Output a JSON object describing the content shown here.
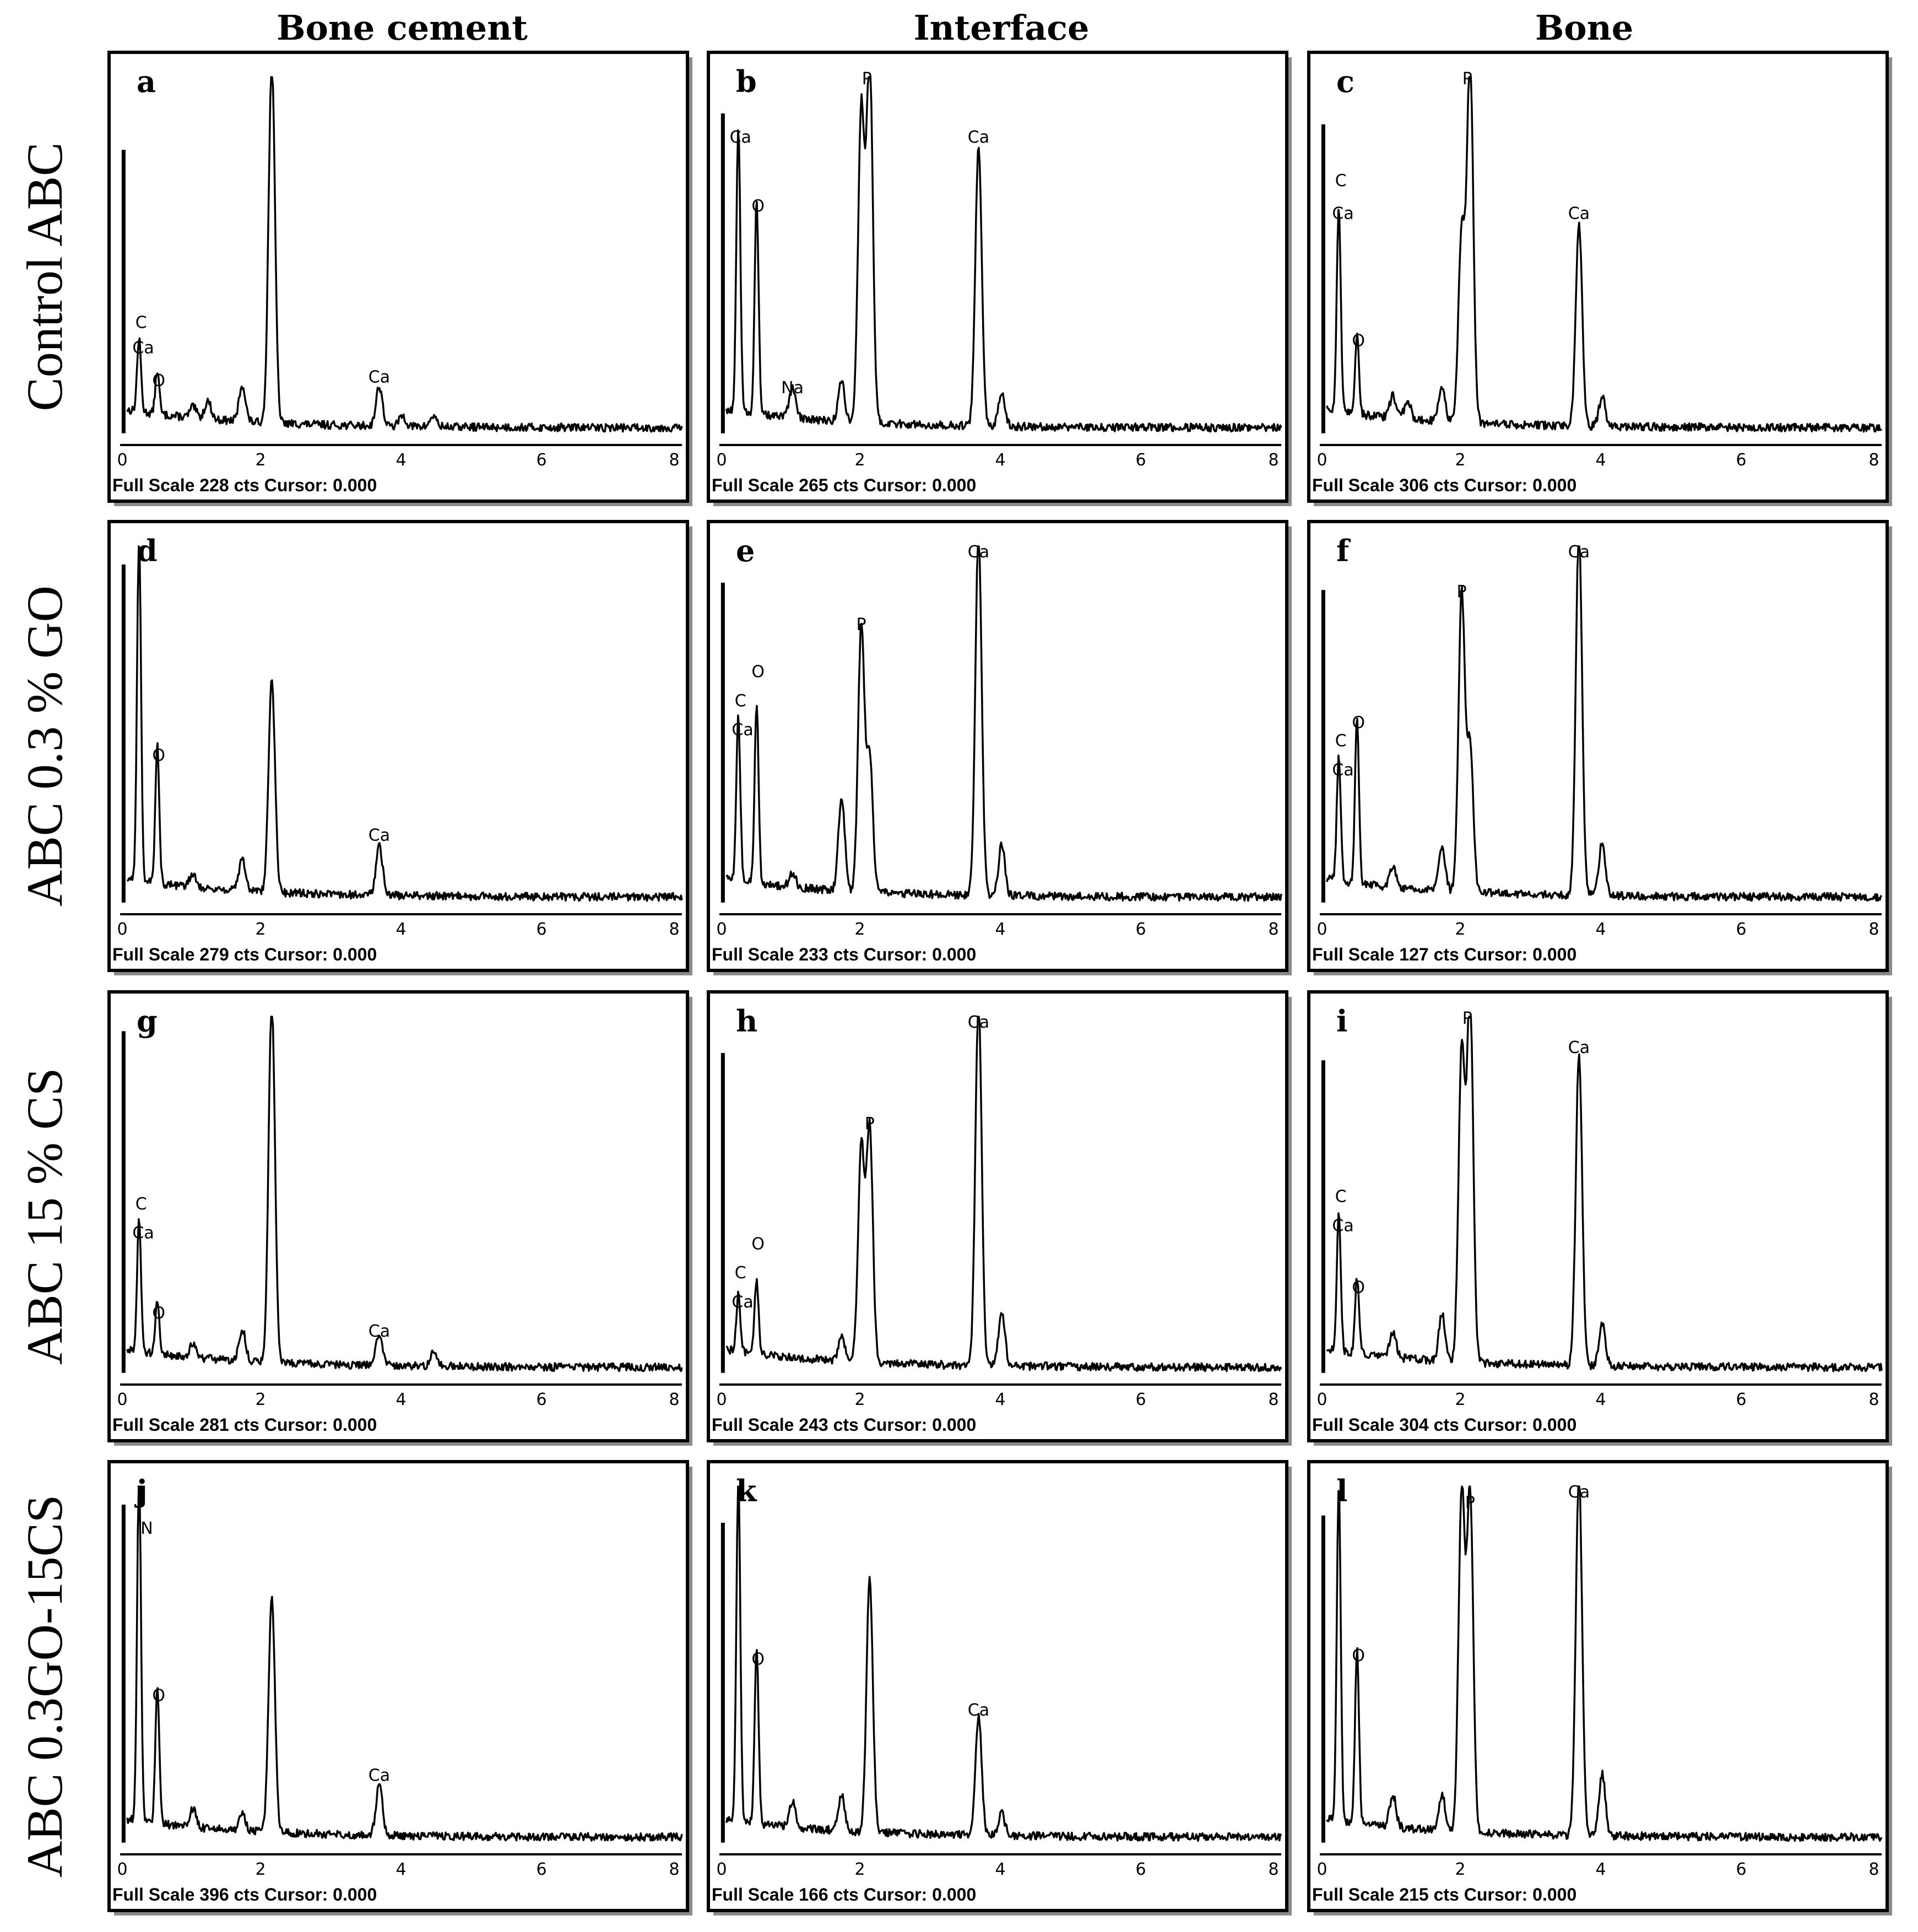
{
  "columns": [
    "Bone cement",
    "Interface",
    "Bone"
  ],
  "rows": [
    "Control ABC",
    "ABC 0.3 % GO",
    "ABC 15 % CS",
    "ABC 0.3GO-15CS"
  ],
  "x_axis": {
    "range": [
      0,
      8
    ],
    "ticks": [
      "0",
      "2",
      "4",
      "6",
      "8"
    ]
  },
  "footer_template": {
    "prefix": "Full Scale",
    "units": "cts",
    "cursor": "Cursor: 0.000"
  },
  "chart_data": [
    {
      "type": "line",
      "panel": "a",
      "column": "Bone cement",
      "row": "Control ABC",
      "full_scale_cts": 228,
      "footer": "Full Scale 228 cts Cursor: 0.000",
      "peaks": [
        {
          "x": 0.05,
          "y": 0.8
        },
        {
          "x": 0.27,
          "y": 0.2
        },
        {
          "x": 0.53,
          "y": 0.12
        },
        {
          "x": 1.04,
          "y": 0.03
        },
        {
          "x": 1.25,
          "y": 0.05
        },
        {
          "x": 1.74,
          "y": 0.1
        },
        {
          "x": 2.16,
          "y": 1.0
        },
        {
          "x": 3.69,
          "y": 0.11
        },
        {
          "x": 4.02,
          "y": 0.03
        },
        {
          "x": 4.46,
          "y": 0.03
        }
      ],
      "labels": [
        {
          "text": "C",
          "x": 0.3,
          "y": 0.31
        },
        {
          "text": "Ca",
          "x": 0.33,
          "y": 0.24
        },
        {
          "text": "O",
          "x": 0.55,
          "y": 0.15
        },
        {
          "text": "Ca",
          "x": 3.69,
          "y": 0.16
        }
      ]
    },
    {
      "type": "line",
      "panel": "b",
      "column": "Interface",
      "row": "Control ABC",
      "full_scale_cts": 265,
      "footer": "Full Scale 265 cts Cursor: 0.000",
      "peaks": [
        {
          "x": 0.05,
          "y": 0.9
        },
        {
          "x": 0.27,
          "y": 0.79
        },
        {
          "x": 0.53,
          "y": 0.59
        },
        {
          "x": 1.04,
          "y": 0.08
        },
        {
          "x": 1.74,
          "y": 0.11
        },
        {
          "x": 2.02,
          "y": 0.86
        },
        {
          "x": 2.14,
          "y": 1.0
        },
        {
          "x": 3.69,
          "y": 0.77
        },
        {
          "x": 4.02,
          "y": 0.09
        }
      ],
      "labels": [
        {
          "text": "Ca",
          "x": 0.3,
          "y": 0.82
        },
        {
          "text": "O",
          "x": 0.55,
          "y": 0.63
        },
        {
          "text": "Na",
          "x": 1.04,
          "y": 0.13
        },
        {
          "text": "P",
          "x": 2.1,
          "y": 0.98
        },
        {
          "text": "Ca",
          "x": 3.69,
          "y": 0.82
        }
      ]
    },
    {
      "type": "line",
      "panel": "c",
      "column": "Bone",
      "row": "Control ABC",
      "full_scale_cts": 306,
      "footer": "Full Scale 306 cts Cursor: 0.000",
      "peaks": [
        {
          "x": 0.05,
          "y": 0.87
        },
        {
          "x": 0.27,
          "y": 0.57
        },
        {
          "x": 0.53,
          "y": 0.22
        },
        {
          "x": 1.04,
          "y": 0.06
        },
        {
          "x": 1.25,
          "y": 0.05
        },
        {
          "x": 1.74,
          "y": 0.1
        },
        {
          "x": 2.02,
          "y": 0.53
        },
        {
          "x": 2.14,
          "y": 1.0
        },
        {
          "x": 3.69,
          "y": 0.56
        },
        {
          "x": 4.02,
          "y": 0.08
        }
      ],
      "labels": [
        {
          "text": "C",
          "x": 0.3,
          "y": 0.7
        },
        {
          "text": "Ca",
          "x": 0.33,
          "y": 0.61
        },
        {
          "text": "O",
          "x": 0.55,
          "y": 0.26
        },
        {
          "text": "P",
          "x": 2.1,
          "y": 0.98
        },
        {
          "text": "Ca",
          "x": 3.69,
          "y": 0.61
        }
      ]
    },
    {
      "type": "line",
      "panel": "d",
      "column": "Bone cement",
      "row": "ABC 0.3 % GO",
      "full_scale_cts": 279,
      "footer": "Full Scale 279 cts Cursor: 0.000",
      "peaks": [
        {
          "x": 0.05,
          "y": 0.95
        },
        {
          "x": 0.27,
          "y": 0.95
        },
        {
          "x": 0.53,
          "y": 0.38
        },
        {
          "x": 1.04,
          "y": 0.04
        },
        {
          "x": 1.74,
          "y": 0.09
        },
        {
          "x": 2.16,
          "y": 0.59
        },
        {
          "x": 3.69,
          "y": 0.14
        }
      ],
      "labels": [
        {
          "text": "O",
          "x": 0.55,
          "y": 0.41
        },
        {
          "text": "Ca",
          "x": 3.69,
          "y": 0.19
        }
      ]
    },
    {
      "type": "line",
      "panel": "e",
      "column": "Interface",
      "row": "ABC 0.3 % GO",
      "full_scale_cts": 233,
      "footer": "Full Scale 233 cts Cursor: 0.000",
      "peaks": [
        {
          "x": 0.05,
          "y": 0.9
        },
        {
          "x": 0.27,
          "y": 0.45
        },
        {
          "x": 0.53,
          "y": 0.5
        },
        {
          "x": 1.04,
          "y": 0.04
        },
        {
          "x": 1.74,
          "y": 0.26
        },
        {
          "x": 2.02,
          "y": 0.73
        },
        {
          "x": 2.14,
          "y": 0.37
        },
        {
          "x": 3.69,
          "y": 1.0
        },
        {
          "x": 4.02,
          "y": 0.14
        }
      ],
      "labels": [
        {
          "text": "C",
          "x": 0.3,
          "y": 0.56
        },
        {
          "text": "Ca",
          "x": 0.33,
          "y": 0.48
        },
        {
          "text": "O",
          "x": 0.55,
          "y": 0.64
        },
        {
          "text": "P",
          "x": 2.02,
          "y": 0.77
        },
        {
          "text": "Ca",
          "x": 3.69,
          "y": 0.97
        }
      ]
    },
    {
      "type": "line",
      "panel": "f",
      "column": "Bone",
      "row": "ABC 0.3 % GO",
      "full_scale_cts": 127,
      "footer": "Full Scale 127 cts Cursor: 0.000",
      "peaks": [
        {
          "x": 0.05,
          "y": 0.88
        },
        {
          "x": 0.27,
          "y": 0.34
        },
        {
          "x": 0.53,
          "y": 0.46
        },
        {
          "x": 1.04,
          "y": 0.06
        },
        {
          "x": 1.74,
          "y": 0.12
        },
        {
          "x": 2.02,
          "y": 0.82
        },
        {
          "x": 2.14,
          "y": 0.4
        },
        {
          "x": 3.69,
          "y": 1.0
        },
        {
          "x": 4.02,
          "y": 0.15
        }
      ],
      "labels": [
        {
          "text": "C",
          "x": 0.3,
          "y": 0.45
        },
        {
          "text": "Ca",
          "x": 0.33,
          "y": 0.37
        },
        {
          "text": "O",
          "x": 0.55,
          "y": 0.5
        },
        {
          "text": "P",
          "x": 2.02,
          "y": 0.86
        },
        {
          "text": "Ca",
          "x": 3.69,
          "y": 0.97
        }
      ]
    },
    {
      "type": "line",
      "panel": "g",
      "column": "Bone cement",
      "row": "ABC 15 % CS",
      "full_scale_cts": 281,
      "footer": "Full Scale 281 cts Cursor: 0.000",
      "peaks": [
        {
          "x": 0.05,
          "y": 0.96
        },
        {
          "x": 0.27,
          "y": 0.36
        },
        {
          "x": 0.53,
          "y": 0.14
        },
        {
          "x": 1.04,
          "y": 0.04
        },
        {
          "x": 1.74,
          "y": 0.09
        },
        {
          "x": 2.16,
          "y": 1.0
        },
        {
          "x": 3.69,
          "y": 0.09
        },
        {
          "x": 4.46,
          "y": 0.04
        }
      ],
      "labels": [
        {
          "text": "C",
          "x": 0.3,
          "y": 0.47
        },
        {
          "text": "Ca",
          "x": 0.33,
          "y": 0.39
        },
        {
          "text": "O",
          "x": 0.55,
          "y": 0.17
        },
        {
          "text": "Ca",
          "x": 3.69,
          "y": 0.12
        }
      ]
    },
    {
      "type": "line",
      "panel": "h",
      "column": "Interface",
      "row": "ABC 15 % CS",
      "full_scale_cts": 243,
      "footer": "Full Scale 243 cts Cursor: 0.000",
      "peaks": [
        {
          "x": 0.05,
          "y": 0.9
        },
        {
          "x": 0.27,
          "y": 0.16
        },
        {
          "x": 0.53,
          "y": 0.2
        },
        {
          "x": 1.74,
          "y": 0.07
        },
        {
          "x": 2.02,
          "y": 0.59
        },
        {
          "x": 2.14,
          "y": 0.65
        },
        {
          "x": 3.69,
          "y": 1.0
        },
        {
          "x": 4.02,
          "y": 0.15
        }
      ],
      "labels": [
        {
          "text": "C",
          "x": 0.3,
          "y": 0.28
        },
        {
          "text": "Ca",
          "x": 0.33,
          "y": 0.2
        },
        {
          "text": "O",
          "x": 0.55,
          "y": 0.36
        },
        {
          "text": "P",
          "x": 2.14,
          "y": 0.69
        },
        {
          "text": "Ca",
          "x": 3.69,
          "y": 0.97
        }
      ]
    },
    {
      "type": "line",
      "panel": "i",
      "column": "Bone",
      "row": "ABC 15 % CS",
      "full_scale_cts": 304,
      "footer": "Full Scale 304 cts Cursor: 0.000",
      "peaks": [
        {
          "x": 0.05,
          "y": 0.88
        },
        {
          "x": 0.27,
          "y": 0.38
        },
        {
          "x": 0.53,
          "y": 0.21
        },
        {
          "x": 1.04,
          "y": 0.07
        },
        {
          "x": 1.74,
          "y": 0.13
        },
        {
          "x": 2.02,
          "y": 0.86
        },
        {
          "x": 2.14,
          "y": 1.0
        },
        {
          "x": 3.69,
          "y": 0.86
        },
        {
          "x": 4.02,
          "y": 0.12
        }
      ],
      "labels": [
        {
          "text": "C",
          "x": 0.3,
          "y": 0.49
        },
        {
          "text": "Ca",
          "x": 0.33,
          "y": 0.41
        },
        {
          "text": "O",
          "x": 0.55,
          "y": 0.24
        },
        {
          "text": "P",
          "x": 2.1,
          "y": 0.98
        },
        {
          "text": "Ca",
          "x": 3.69,
          "y": 0.9
        }
      ]
    },
    {
      "type": "line",
      "panel": "j",
      "column": "Bone cement",
      "row": "ABC 0.3GO-15CS",
      "full_scale_cts": 396,
      "footer": "Full Scale 396 cts Cursor: 0.000",
      "peaks": [
        {
          "x": 0.05,
          "y": 0.95
        },
        {
          "x": 0.27,
          "y": 0.95
        },
        {
          "x": 0.53,
          "y": 0.38
        },
        {
          "x": 1.04,
          "y": 0.05
        },
        {
          "x": 1.74,
          "y": 0.05
        },
        {
          "x": 2.16,
          "y": 0.65
        },
        {
          "x": 3.69,
          "y": 0.14
        }
      ],
      "labels": [
        {
          "text": "N",
          "x": 0.38,
          "y": 0.87
        },
        {
          "text": "O",
          "x": 0.55,
          "y": 0.41
        },
        {
          "text": "Ca",
          "x": 3.69,
          "y": 0.19
        }
      ]
    },
    {
      "type": "line",
      "panel": "k",
      "column": "Interface",
      "row": "ABC 0.3GO-15CS",
      "full_scale_cts": 166,
      "footer": "Full Scale 166 cts Cursor: 0.000",
      "peaks": [
        {
          "x": 0.05,
          "y": 0.9
        },
        {
          "x": 0.27,
          "y": 0.95
        },
        {
          "x": 0.53,
          "y": 0.48
        },
        {
          "x": 1.04,
          "y": 0.07
        },
        {
          "x": 1.74,
          "y": 0.1
        },
        {
          "x": 2.14,
          "y": 0.7
        },
        {
          "x": 3.69,
          "y": 0.33
        },
        {
          "x": 4.02,
          "y": 0.06
        }
      ],
      "labels": [
        {
          "text": "O",
          "x": 0.55,
          "y": 0.51
        },
        {
          "text": "Ca",
          "x": 3.69,
          "y": 0.37
        }
      ]
    },
    {
      "type": "line",
      "panel": "l",
      "column": "Bone",
      "row": "ABC 0.3GO-15CS",
      "full_scale_cts": 215,
      "footer": "Full Scale 215 cts Cursor: 0.000",
      "peaks": [
        {
          "x": 0.05,
          "y": 0.92
        },
        {
          "x": 0.27,
          "y": 0.92
        },
        {
          "x": 0.53,
          "y": 0.48
        },
        {
          "x": 1.04,
          "y": 0.09
        },
        {
          "x": 1.74,
          "y": 0.1
        },
        {
          "x": 2.02,
          "y": 0.93
        },
        {
          "x": 2.14,
          "y": 0.93
        },
        {
          "x": 3.69,
          "y": 1.0
        },
        {
          "x": 4.02,
          "y": 0.17
        }
      ],
      "labels": [
        {
          "text": "O",
          "x": 0.55,
          "y": 0.52
        },
        {
          "text": "P",
          "x": 2.14,
          "y": 0.94
        },
        {
          "text": "Ca",
          "x": 3.69,
          "y": 0.97
        }
      ]
    }
  ]
}
